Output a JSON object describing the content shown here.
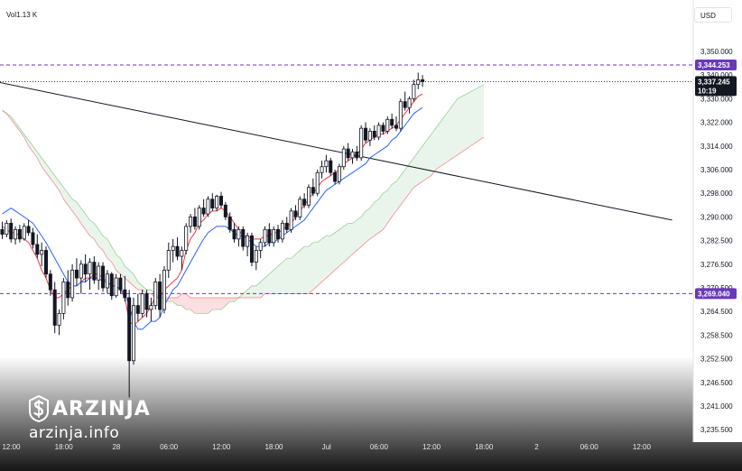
{
  "header": {
    "volume_label": "Vol1.13 K",
    "currency": "USD"
  },
  "brand": {
    "name": "ARZINJA",
    "site": "arzinja.info"
  },
  "chart_data": {
    "type": "candlestick",
    "y_axis": {
      "range": [
        3230.5,
        3358.0
      ],
      "ticks": [
        "3,350.000",
        "3,340.000",
        "3,330.000",
        "3,322.000",
        "3,314.000",
        "3,306.000",
        "3,298.000",
        "3,290.000",
        "3,282.500",
        "3,276.500",
        "3,270.500",
        "3,264.500",
        "3,258.500",
        "3,252.500",
        "3,246.500",
        "3,241.000",
        "3,235.500"
      ],
      "tick_values": [
        3350,
        3340,
        3330,
        3322,
        3314,
        3306,
        3298,
        3290,
        3282.5,
        3276.5,
        3270.5,
        3264.5,
        3258.5,
        3252.5,
        3246.5,
        3241,
        3235.5
      ]
    },
    "x_axis": {
      "labels": [
        "12:00",
        "18:00",
        "28",
        "06:00",
        "12:00",
        "18:00",
        "Jul",
        "06:00",
        "12:00",
        "18:00",
        "2",
        "06:00",
        "12:00"
      ],
      "bar_index": [
        0,
        12,
        24,
        36,
        48,
        60,
        72,
        84,
        96,
        108,
        120,
        132,
        144
      ]
    },
    "levels": [
      {
        "label": "3,344.253",
        "value": 3344.253,
        "color": "#673ab7"
      },
      {
        "label": "3,269.040",
        "value": 3269.04,
        "color": "#673ab7"
      }
    ],
    "last_price": {
      "label": "3,337.245",
      "countdown": "10:19",
      "value": 3337.245
    },
    "trendline": {
      "from": [
        -1,
        3337.0
      ],
      "to": [
        153,
        3289.0
      ]
    },
    "candles": [
      [
        3286,
        3288.5,
        3283,
        3284.5
      ],
      [
        3284.5,
        3289,
        3283.5,
        3288
      ],
      [
        3288,
        3289.5,
        3282,
        3283
      ],
      [
        3283,
        3287,
        3281.5,
        3286
      ],
      [
        3286,
        3287.5,
        3282,
        3283
      ],
      [
        3283,
        3288,
        3282.5,
        3287
      ],
      [
        3287,
        3289,
        3284,
        3285
      ],
      [
        3285,
        3286.5,
        3280.5,
        3281.5
      ],
      [
        3281.5,
        3284.5,
        3278,
        3279
      ],
      [
        3279,
        3282,
        3276,
        3280
      ],
      [
        3280,
        3281,
        3273,
        3274
      ],
      [
        3274,
        3275,
        3268.5,
        3270
      ],
      [
        3270,
        3272,
        3259,
        3261
      ],
      [
        3261,
        3265,
        3258.5,
        3264
      ],
      [
        3264,
        3273,
        3262.5,
        3272
      ],
      [
        3272,
        3275,
        3266,
        3268
      ],
      [
        3268,
        3276.5,
        3267,
        3275
      ],
      [
        3275,
        3278,
        3271,
        3273
      ],
      [
        3273,
        3277.5,
        3269,
        3276.5
      ],
      [
        3276.5,
        3279,
        3272,
        3274
      ],
      [
        3274,
        3278,
        3270,
        3277
      ],
      [
        3277,
        3278.5,
        3271.5,
        3272.5
      ],
      [
        3272.5,
        3277,
        3270,
        3276
      ],
      [
        3276,
        3277,
        3269.5,
        3270.5
      ],
      [
        3270.5,
        3275,
        3269,
        3274
      ],
      [
        3274,
        3274.5,
        3267.5,
        3268.5
      ],
      [
        3268.5,
        3274,
        3268,
        3273
      ],
      [
        3273,
        3274,
        3269,
        3270
      ],
      [
        3270,
        3273.5,
        3267,
        3268
      ],
      [
        3268,
        3270,
        3243,
        3252
      ],
      [
        3252,
        3268,
        3251,
        3266
      ],
      [
        3266,
        3269,
        3262,
        3264
      ],
      [
        3264,
        3270,
        3263,
        3269
      ],
      [
        3269,
        3270,
        3263,
        3265
      ],
      [
        3265,
        3268,
        3262,
        3266
      ],
      [
        3266,
        3273,
        3265,
        3272
      ],
      [
        3272,
        3274,
        3263,
        3265
      ],
      [
        3265,
        3276,
        3264,
        3275
      ],
      [
        3275,
        3282,
        3273,
        3280
      ],
      [
        3280,
        3283,
        3277,
        3281
      ],
      [
        3281,
        3283.5,
        3277.5,
        3278.5
      ],
      [
        3278.5,
        3281,
        3275,
        3280
      ],
      [
        3280,
        3288,
        3279,
        3287
      ],
      [
        3287,
        3291,
        3285,
        3290
      ],
      [
        3290,
        3293,
        3286,
        3287
      ],
      [
        3287,
        3294,
        3286,
        3293
      ],
      [
        3293,
        3296,
        3290,
        3291
      ],
      [
        3291,
        3297,
        3290,
        3296
      ],
      [
        3296,
        3298,
        3292,
        3293
      ],
      [
        3293,
        3297.5,
        3292,
        3297
      ],
      [
        3297,
        3298.5,
        3293,
        3294
      ],
      [
        3294,
        3295,
        3289,
        3290
      ],
      [
        3290,
        3291.5,
        3285,
        3286
      ],
      [
        3286,
        3288,
        3282,
        3283
      ],
      [
        3283,
        3287,
        3281,
        3286
      ],
      [
        3286,
        3287,
        3280,
        3281
      ],
      [
        3281,
        3285,
        3278.5,
        3284
      ],
      [
        3284,
        3285,
        3276,
        3277
      ],
      [
        3277,
        3281,
        3275,
        3280
      ],
      [
        3280,
        3283,
        3278,
        3282
      ],
      [
        3282,
        3287,
        3281,
        3286
      ],
      [
        3286,
        3288,
        3281,
        3282
      ],
      [
        3282,
        3287,
        3281,
        3286
      ],
      [
        3286,
        3287.5,
        3282,
        3283
      ],
      [
        3283,
        3289,
        3282,
        3288
      ],
      [
        3288,
        3290,
        3285,
        3286
      ],
      [
        3286,
        3293,
        3285,
        3292
      ],
      [
        3292,
        3294,
        3289,
        3290
      ],
      [
        3290,
        3297,
        3289,
        3296
      ],
      [
        3296,
        3298,
        3293,
        3294
      ],
      [
        3294,
        3301,
        3293,
        3300
      ],
      [
        3300,
        3303,
        3297,
        3298
      ],
      [
        3298,
        3306,
        3297,
        3305
      ],
      [
        3305,
        3309,
        3303,
        3307
      ],
      [
        3307,
        3311,
        3305,
        3309
      ],
      [
        3309,
        3310,
        3304,
        3305
      ],
      [
        3305,
        3306,
        3301,
        3302
      ],
      [
        3302,
        3308,
        3301,
        3307
      ],
      [
        3307,
        3314,
        3306,
        3313
      ],
      [
        3313,
        3315,
        3309,
        3310
      ],
      [
        3310,
        3313,
        3308,
        3312
      ],
      [
        3312,
        3314,
        3309,
        3310
      ],
      [
        3310,
        3321,
        3309,
        3320
      ],
      [
        3320,
        3322,
        3315,
        3316
      ],
      [
        3316,
        3320,
        3314,
        3319
      ],
      [
        3319,
        3321,
        3316,
        3317
      ],
      [
        3317,
        3322,
        3316,
        3321
      ],
      [
        3321,
        3322,
        3318,
        3319
      ],
      [
        3319,
        3324,
        3318,
        3323
      ],
      [
        3323,
        3325,
        3320,
        3321
      ],
      [
        3321,
        3324,
        3319,
        3320
      ],
      [
        3320,
        3330,
        3319,
        3329
      ],
      [
        3329,
        3333,
        3326,
        3327
      ],
      [
        3327,
        3331,
        3325,
        3330
      ],
      [
        3330,
        3338,
        3329,
        3336
      ],
      [
        3336,
        3341,
        3334,
        3338
      ],
      [
        3338,
        3340,
        3335,
        3337.245
      ]
    ],
    "series": [
      {
        "name": "conversion",
        "color": "#f23645",
        "values": [
          3287,
          3286,
          3285,
          3285,
          3284,
          3283,
          3282,
          3280,
          3278,
          3275,
          3273,
          3270,
          3268,
          3268,
          3269,
          3270,
          3271,
          3271,
          3272,
          3273,
          3273,
          3274,
          3274,
          3273,
          3272,
          3271,
          3271,
          3270,
          3268,
          3262,
          3261,
          3262,
          3263,
          3264,
          3266,
          3268,
          3268,
          3270,
          3271,
          3272,
          3273,
          3275,
          3280,
          3283,
          3285,
          3288,
          3289,
          3291,
          3292,
          3292,
          3293,
          3292,
          3290,
          3288,
          3286,
          3284,
          3284,
          3283,
          3283,
          3283,
          3284,
          3284,
          3285,
          3285,
          3286,
          3287,
          3288,
          3290,
          3292,
          3294,
          3296,
          3298,
          3300,
          3302,
          3303,
          3304,
          3305,
          3306,
          3308,
          3309,
          3310,
          3311,
          3313,
          3315,
          3316,
          3317,
          3318,
          3318,
          3319,
          3320,
          3321,
          3323,
          3325,
          3327,
          3329,
          3331,
          3332
        ]
      },
      {
        "name": "base",
        "color": "#2962ff",
        "values": [
          3291,
          3292,
          3293,
          3292,
          3291,
          3290,
          3289,
          3288,
          3286,
          3284,
          3282,
          3280,
          3278,
          3276,
          3274,
          3272,
          3271,
          3271,
          3272,
          3272,
          3273,
          3273,
          3273,
          3272,
          3272,
          3271,
          3271,
          3270,
          3269,
          3266,
          3262,
          3260,
          3260,
          3261,
          3262,
          3262,
          3263,
          3266,
          3268,
          3270,
          3271,
          3273,
          3275,
          3277,
          3279,
          3281,
          3283,
          3285,
          3286,
          3287,
          3287,
          3287,
          3286,
          3285,
          3284,
          3284,
          3283,
          3282,
          3281,
          3281,
          3281,
          3282,
          3282,
          3283,
          3284,
          3285,
          3286,
          3287,
          3288,
          3289,
          3291,
          3293,
          3295,
          3297,
          3299,
          3300,
          3301,
          3302,
          3303,
          3304,
          3305,
          3306,
          3307,
          3308,
          3310,
          3311,
          3312,
          3313,
          3314,
          3316,
          3317,
          3319,
          3321,
          3323,
          3325,
          3326,
          3327
        ]
      }
    ],
    "cloud": {
      "start_index": 0,
      "span_a": [
        3326,
        3325,
        3324,
        3322,
        3320,
        3318,
        3316,
        3314,
        3312,
        3310,
        3308,
        3306,
        3304,
        3302,
        3300,
        3298,
        3296,
        3295,
        3293,
        3291,
        3289,
        3288,
        3286,
        3284,
        3283,
        3281,
        3279,
        3278,
        3276,
        3275,
        3274,
        3272,
        3271,
        3270,
        3270,
        3269,
        3268,
        3268,
        3267,
        3267,
        3266,
        3266,
        3265,
        3265,
        3264,
        3264,
        3264,
        3264,
        3265,
        3265,
        3265,
        3266,
        3267,
        3267,
        3268,
        3269,
        3270,
        3271,
        3271,
        3272,
        3273,
        3274,
        3275,
        3276,
        3277,
        3278,
        3278,
        3279,
        3280,
        3281,
        3281,
        3282,
        3282,
        3283,
        3284,
        3284,
        3285,
        3286,
        3287,
        3288,
        3288,
        3289,
        3290,
        3292,
        3293,
        3295,
        3296,
        3298,
        3299,
        3301,
        3302,
        3304,
        3306,
        3308,
        3310,
        3312,
        3314,
        3316,
        3318,
        3320,
        3322,
        3324,
        3326,
        3328,
        3330,
        3331,
        3332,
        3333,
        3334,
        3335,
        3336
      ],
      "span_b": [
        3326,
        3325,
        3323,
        3321,
        3319,
        3317,
        3314,
        3312,
        3310,
        3307,
        3305,
        3303,
        3301,
        3299,
        3296,
        3294,
        3292,
        3290,
        3288,
        3286,
        3284,
        3283,
        3281,
        3280,
        3278,
        3277,
        3275,
        3274,
        3273,
        3272,
        3271,
        3270,
        3270,
        3269,
        3269,
        3268,
        3268,
        3268,
        3268,
        3268,
        3268,
        3269,
        3269,
        3268,
        3268,
        3268,
        3268,
        3268,
        3268,
        3268,
        3268,
        3268,
        3268,
        3268,
        3268,
        3268,
        3268,
        3268,
        3268,
        3268,
        3269,
        3269,
        3269,
        3269,
        3269,
        3269,
        3269,
        3269,
        3269,
        3269,
        3269,
        3270,
        3271,
        3272,
        3273,
        3274,
        3275,
        3276,
        3277,
        3278,
        3279,
        3280,
        3281,
        3282,
        3283,
        3284,
        3285,
        3286,
        3288,
        3290,
        3292,
        3294,
        3296,
        3298,
        3300,
        3301,
        3302,
        3303,
        3304,
        3306,
        3307,
        3308,
        3309,
        3310,
        3311,
        3312,
        3313,
        3314,
        3315,
        3316,
        3317
      ],
      "color_up": "#4caf50",
      "color_down": "#f23645"
    }
  }
}
